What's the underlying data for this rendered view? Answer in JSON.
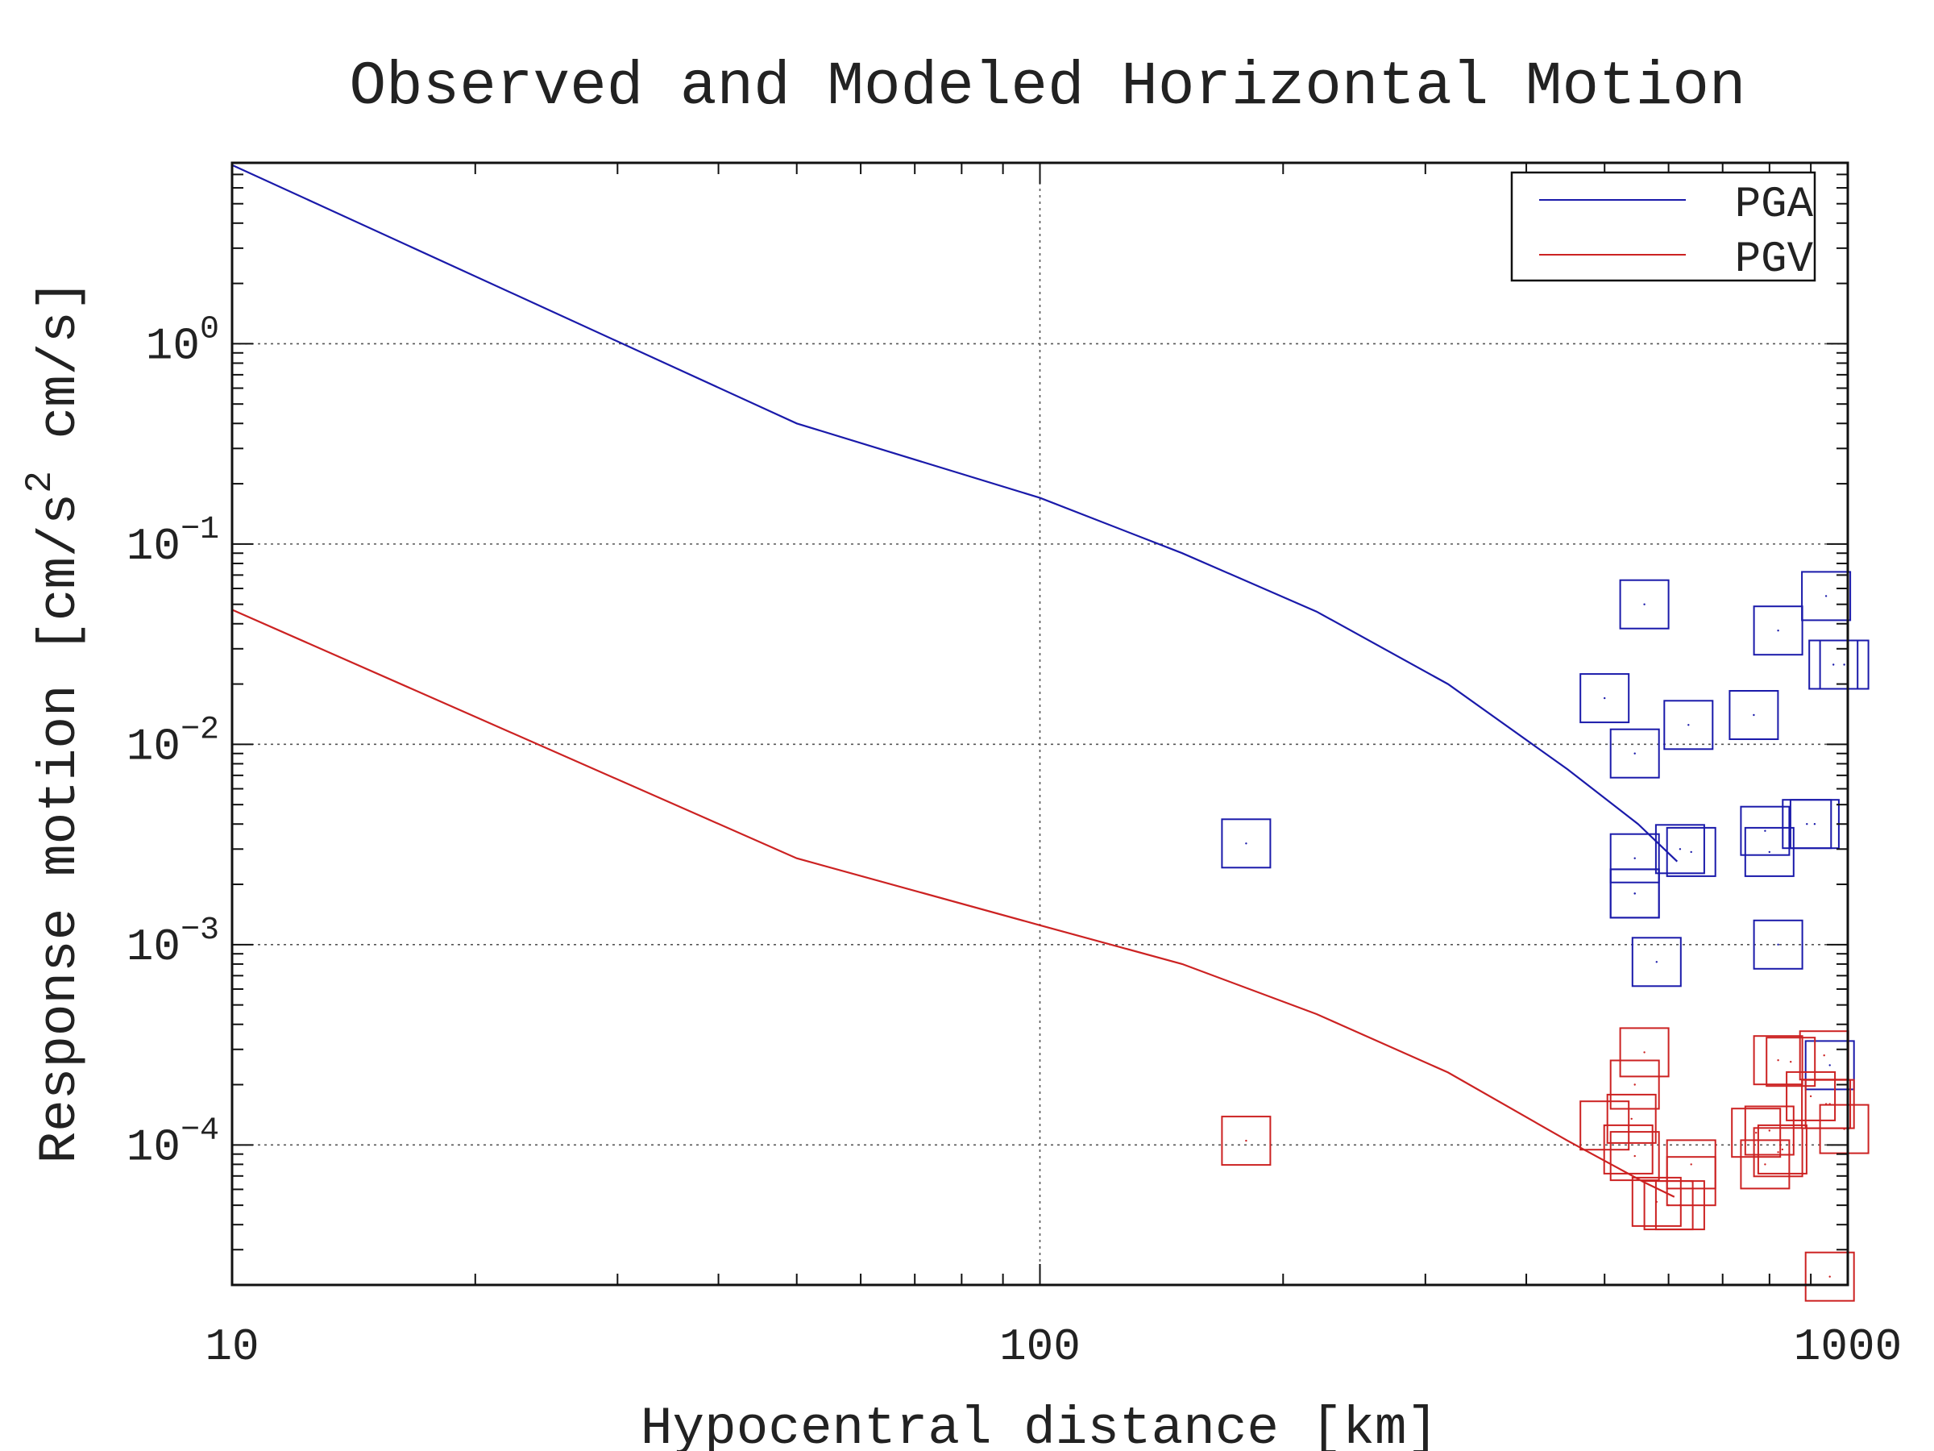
{
  "chart_data": {
    "type": "line",
    "title": "Observed and Modeled Horizontal Motion",
    "xlabel": "Hypocentral distance [km]",
    "ylabel_parts": {
      "pre": "Response motion  [cm/s",
      "sup": "2",
      "post": "  cm/s]"
    },
    "x_scale": "log",
    "y_scale": "log",
    "xlim": [
      10,
      1000
    ],
    "ylim": [
      2e-05,
      8
    ],
    "grid": true,
    "legend_position": "top-right",
    "x_ticks": [
      {
        "value": 10,
        "label": "10"
      },
      {
        "value": 100,
        "label": "100"
      },
      {
        "value": 1000,
        "label": "1000"
      }
    ],
    "y_ticks": [
      {
        "value": 1,
        "base": "10",
        "exp": "0"
      },
      {
        "value": 0.1,
        "base": "10",
        "exp": "−1"
      },
      {
        "value": 0.01,
        "base": "10",
        "exp": "−2"
      },
      {
        "value": 0.001,
        "base": "10",
        "exp": "−3"
      },
      {
        "value": 0.0001,
        "base": "10",
        "exp": "−4"
      }
    ],
    "series": [
      {
        "name": "PGA",
        "color": "#1a1aaa",
        "line": {
          "x": [
            10,
            50,
            100,
            150,
            220,
            320,
            450,
            550,
            615
          ],
          "y": [
            7.8,
            0.4,
            0.17,
            0.09,
            0.046,
            0.02,
            0.0075,
            0.004,
            0.0026
          ]
        },
        "observed": {
          "x": [
            180,
            500,
            560,
            545,
            635,
            765,
            800,
            820,
            910,
            940,
            960,
            990,
            545,
            620,
            640,
            545,
            545,
            580,
            790,
            820,
            890,
            950
          ],
          "y": [
            0.0032,
            0.017,
            0.05,
            0.009,
            0.0125,
            0.014,
            0.0029,
            0.037,
            0.004,
            0.055,
            0.025,
            0.025,
            0.0027,
            0.003,
            0.0029,
            0.0018,
            0.0018,
            0.00082,
            0.0037,
            0.001,
            0.004,
            0.00025
          ]
        }
      },
      {
        "name": "PGV",
        "color": "#cc2222",
        "line": {
          "x": [
            10,
            50,
            100,
            150,
            220,
            320,
            450,
            560,
            610
          ],
          "y": [
            0.047,
            0.0027,
            0.00125,
            0.0008,
            0.00045,
            0.00023,
            0.000105,
            6.5e-05,
            5.5e-05
          ]
        },
        "observed": {
          "x": [
            180,
            500,
            560,
            545,
            540,
            535,
            545,
            580,
            620,
            640,
            640,
            600,
            770,
            790,
            800,
            820,
            830,
            820,
            850,
            900,
            935,
            940,
            950,
            990,
            950
          ],
          "y": [
            0.000105,
            0.000125,
            0.00029,
            0.0002,
            0.000135,
            9.5e-05,
            8.8e-05,
            5.2e-05,
            5e-05,
            8e-05,
            6.6e-05,
            5e-05,
            0.000115,
            8e-05,
            0.000118,
            9.2e-05,
            9.5e-05,
            0.000265,
            0.00026,
            0.000175,
            0.00028,
            0.00016,
            2.2e-05,
            0.00012,
            0.00016
          ]
        }
      }
    ]
  }
}
